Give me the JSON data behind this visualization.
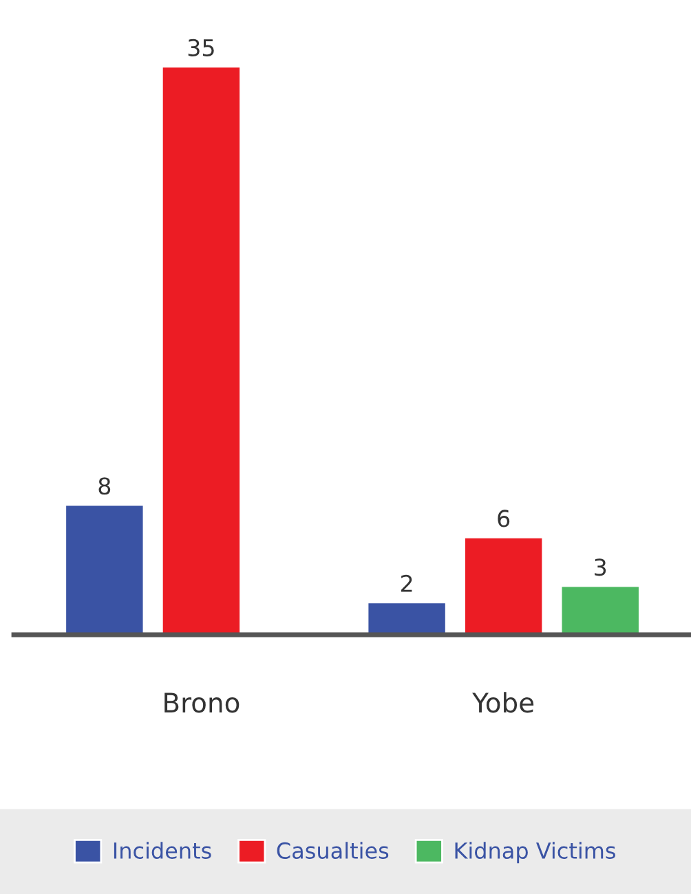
{
  "chart_data": {
    "type": "bar",
    "categories": [
      "Brono",
      "Yobe"
    ],
    "series": [
      {
        "name": "Incidents",
        "color": "#3a53a4",
        "values": [
          8,
          2
        ]
      },
      {
        "name": "Casualties",
        "color": "#ec1c24",
        "values": [
          35,
          6
        ]
      },
      {
        "name": "Kidnap Victims",
        "color": "#4cb861",
        "values": [
          null,
          3
        ]
      }
    ],
    "data_labels": true,
    "legend": "bottom",
    "grid": false
  }
}
